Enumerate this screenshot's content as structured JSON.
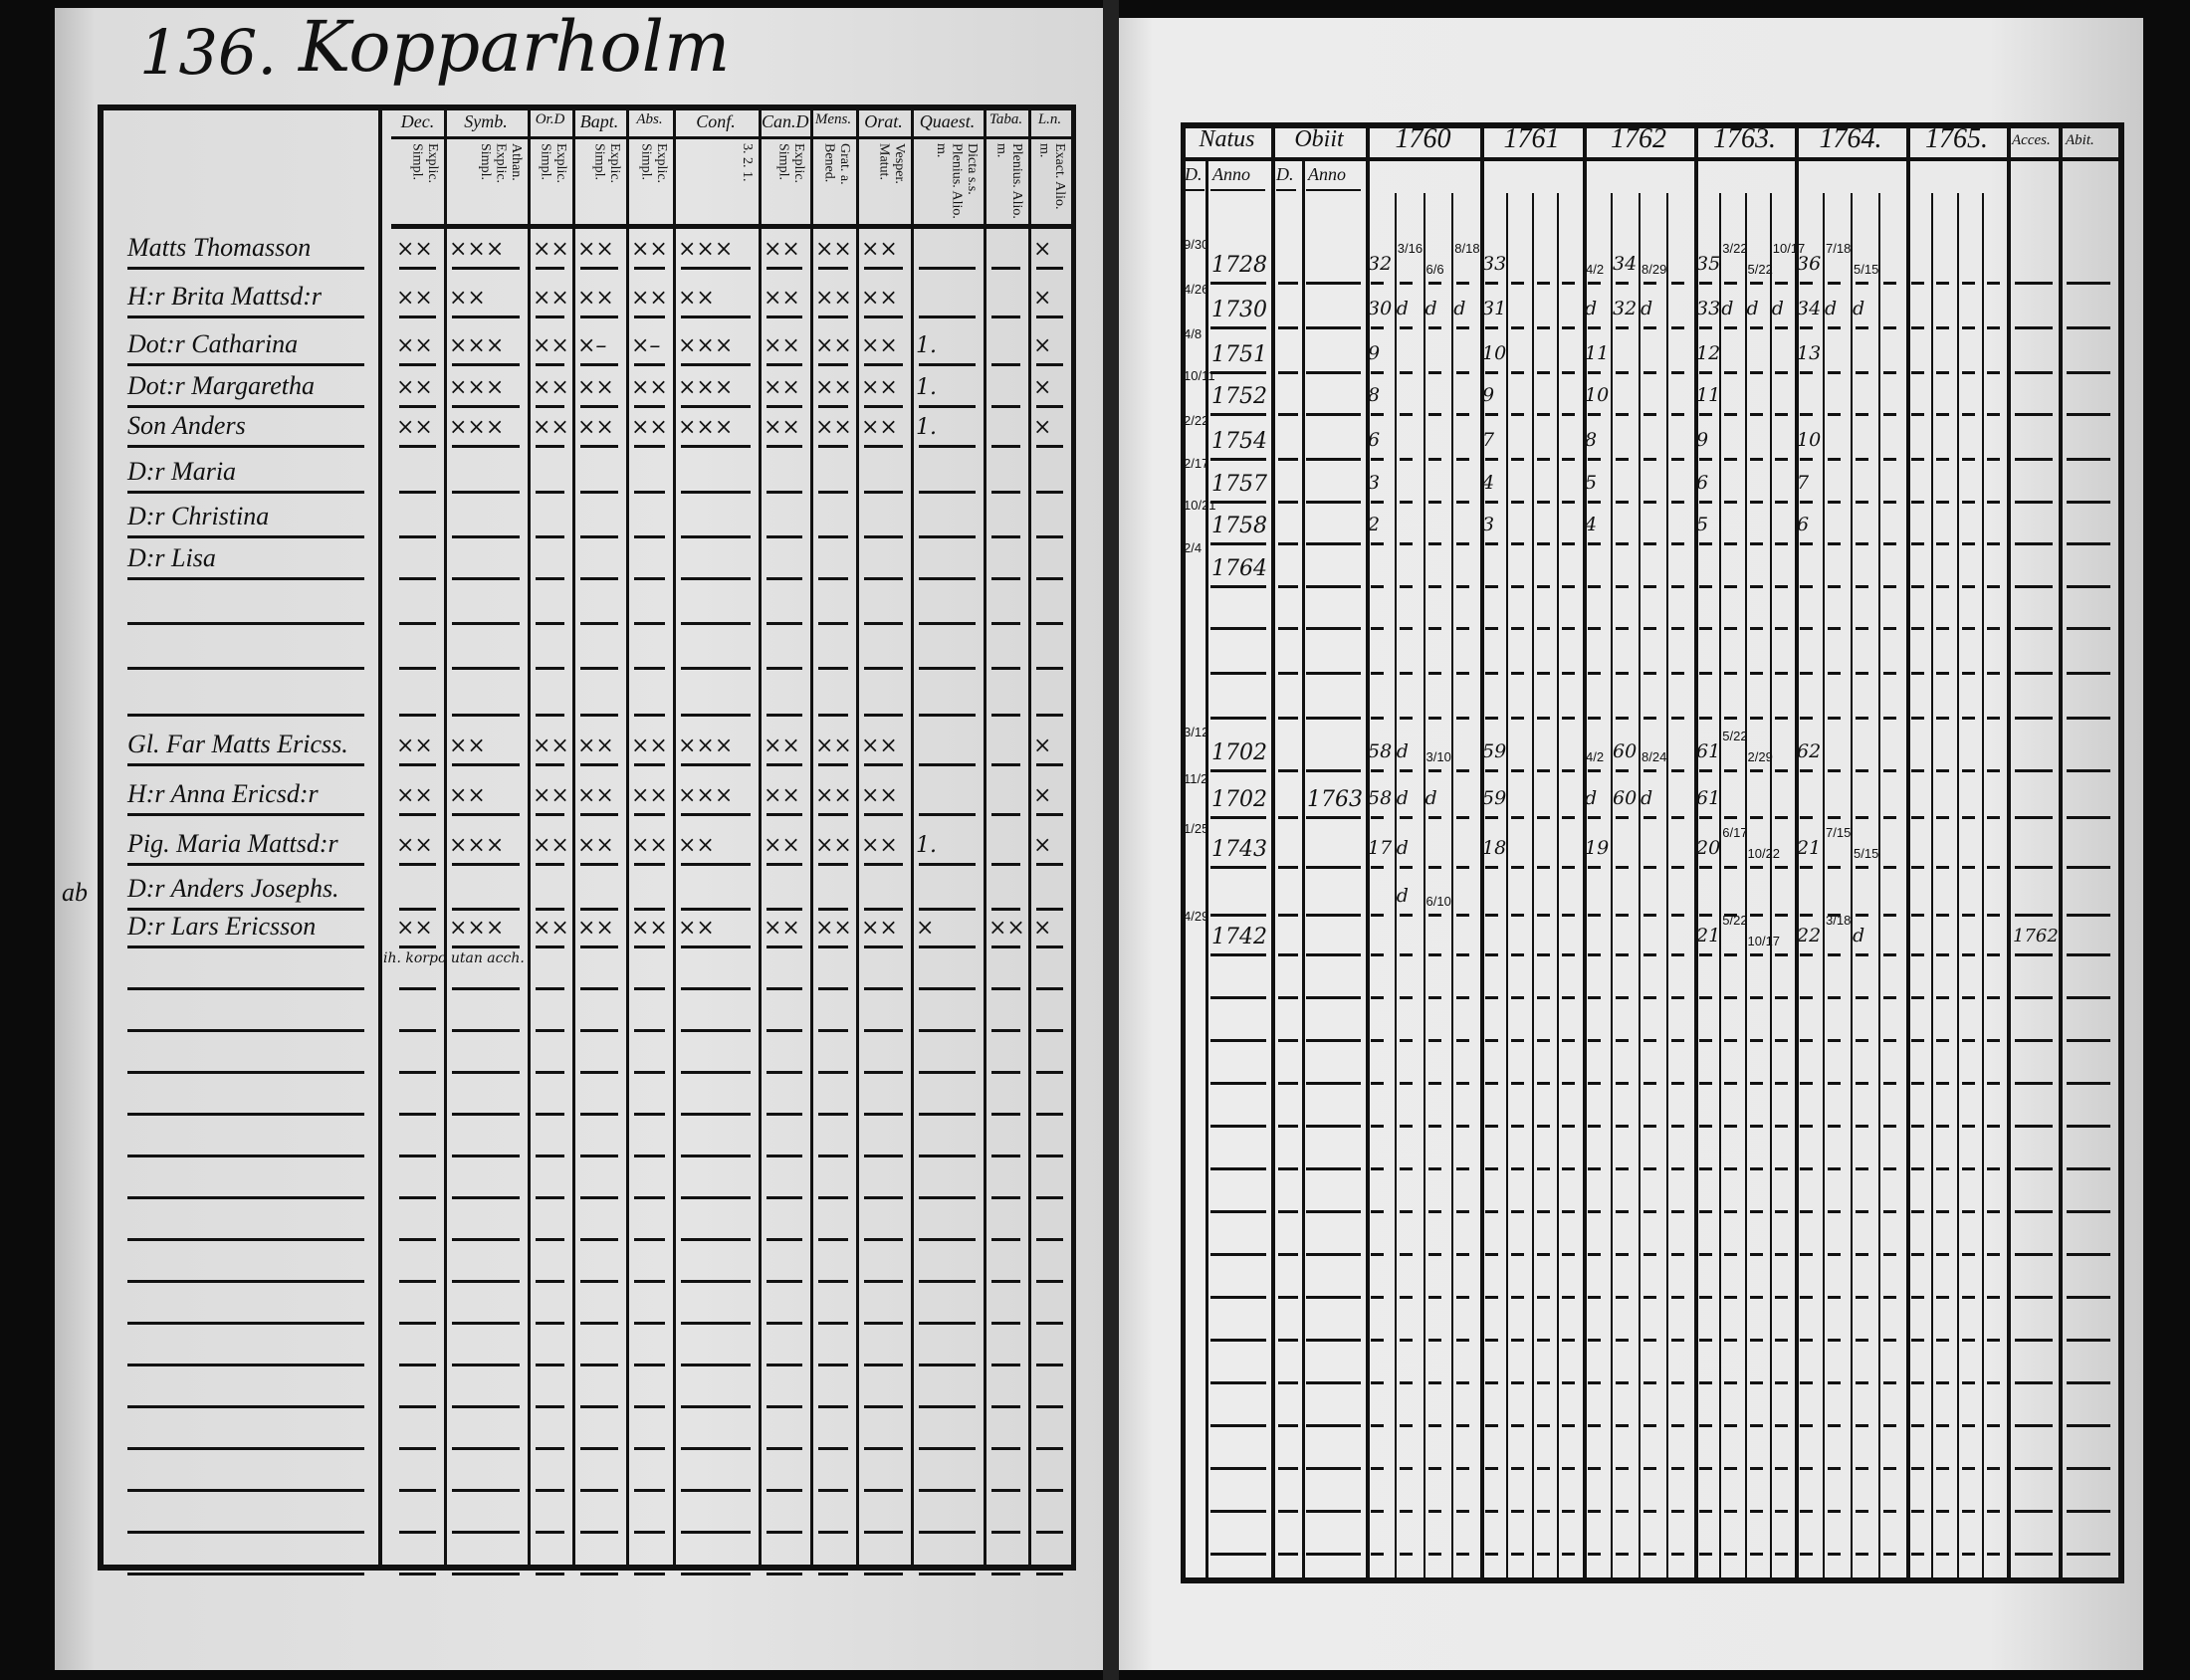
{
  "left_page": {
    "page_number": "136.",
    "place_title": "Kopparholm",
    "columns": [
      {
        "header": "Dec.",
        "sub": "Explic. Simpl."
      },
      {
        "header": "Symb.",
        "sub": "Athan. Explic. Simpl."
      },
      {
        "header": "Or.D",
        "sub": "Explic. Simpl."
      },
      {
        "header": "Bapt.",
        "sub": "Explic. Simpl."
      },
      {
        "header": "Abs.",
        "sub": "Explic. Simpl."
      },
      {
        "header": "Conf.",
        "sub": "3. 2. 1."
      },
      {
        "header": "Can.D",
        "sub": "Explic. Simpl."
      },
      {
        "header": "Mens.",
        "sub": "Grat. a. Bened."
      },
      {
        "header": "Orat.",
        "sub": "Vesper. Matut."
      },
      {
        "header": "Quaest.",
        "sub": "Dicta s.s. Plenius. Alio. m."
      },
      {
        "header": "Taba.",
        "sub": "Plenius. Alio. m."
      },
      {
        "header": "L.n.",
        "sub": "Exact. Alio. m."
      }
    ],
    "margin_note": "ab",
    "persons": [
      {
        "name": "Matts Thomasson",
        "marks": [
          "××",
          "×××",
          "××",
          "××",
          "××",
          "×××",
          "××",
          "××",
          "××",
          "",
          "",
          "×"
        ]
      },
      {
        "name": "H:r Brita Mattsd:r",
        "marks": [
          "××",
          "××",
          "××",
          "××",
          "××",
          "××",
          "××",
          "××",
          "××",
          "",
          "",
          "×"
        ]
      },
      {
        "name": "Dot:r Catharina",
        "marks": [
          "××",
          "×××",
          "××",
          "×–",
          "×–",
          "×××",
          "××",
          "××",
          "××",
          "1.",
          "",
          "×"
        ]
      },
      {
        "name": "Dot:r Margaretha",
        "marks": [
          "××",
          "×××",
          "××",
          "××",
          "××",
          "×××",
          "××",
          "××",
          "××",
          "1.",
          "",
          "×"
        ]
      },
      {
        "name": "Son Anders",
        "marks": [
          "××",
          "×××",
          "××",
          "××",
          "××",
          "×××",
          "××",
          "××",
          "××",
          "1.",
          "",
          "×"
        ]
      },
      {
        "name": "D:r Maria",
        "marks": []
      },
      {
        "name": "D:r Christina",
        "marks": []
      },
      {
        "name": "D:r Lisa",
        "marks": []
      },
      {
        "name": "",
        "marks": []
      },
      {
        "name": "",
        "marks": []
      },
      {
        "name": "",
        "marks": []
      },
      {
        "name": "Gl. Far Matts Ericss.",
        "marks": [
          "××",
          "××",
          "××",
          "××",
          "××",
          "×××",
          "××",
          "××",
          "××",
          "",
          "",
          "×"
        ]
      },
      {
        "name": "H:r Anna Ericsd:r",
        "marks": [
          "××",
          "××",
          "××",
          "××",
          "××",
          "×××",
          "××",
          "××",
          "××",
          "",
          "",
          "×"
        ]
      },
      {
        "name": "Pig. Maria Mattsd:r",
        "marks": [
          "××",
          "×××",
          "××",
          "××",
          "××",
          "××",
          "××",
          "××",
          "××",
          "1.",
          "",
          "×"
        ]
      },
      {
        "name": "D:r Anders Josephs.",
        "marks": []
      },
      {
        "name": "D:r Lars Ericsson",
        "marks": [
          "××",
          "×××",
          "××",
          "××",
          "××",
          "××",
          "××",
          "××",
          "××",
          "×",
          "××",
          "×"
        ],
        "note": "ih. korpo utan acch."
      }
    ]
  },
  "right_page": {
    "headers": {
      "natus": "Natus",
      "obiit": "Obiit",
      "years": [
        "1760",
        "1761",
        "1762",
        "1763.",
        "1764.",
        "1765."
      ],
      "accessit": "Acces.",
      "abiit": "Abit."
    },
    "subheaders": {
      "natus_day": "D.",
      "natus_anno": "Anno",
      "obiit_day": "D.",
      "obiit_anno": "Anno"
    },
    "rows": [
      {
        "day": "9/30",
        "anno": "1728",
        "obiit": "",
        "years": [
          [
            "32",
            "3/16",
            "6/6",
            "8/18"
          ],
          [
            "33",
            "",
            "",
            ""
          ],
          [
            "4/2",
            "34",
            "8/29",
            ""
          ],
          [
            "35",
            "3/22",
            "5/22",
            "10/17"
          ],
          [
            "36",
            "7/18",
            "5/15",
            ""
          ],
          [
            "",
            "",
            "",
            ""
          ]
        ],
        "accessit": ""
      },
      {
        "day": "4/26",
        "anno": "1730",
        "obiit": "",
        "years": [
          [
            "30",
            "d",
            "d",
            "d"
          ],
          [
            "31",
            "",
            "",
            ""
          ],
          [
            "d",
            "32",
            "d",
            ""
          ],
          [
            "33",
            "d",
            "d",
            "d"
          ],
          [
            "34",
            "d",
            "d",
            ""
          ],
          [
            "",
            "",
            "",
            ""
          ]
        ],
        "accessit": ""
      },
      {
        "day": "4/8",
        "anno": "1751",
        "obiit": "",
        "years": [
          [
            "9",
            "",
            "",
            ""
          ],
          [
            "10",
            "",
            "",
            ""
          ],
          [
            "11",
            "",
            "",
            ""
          ],
          [
            "12",
            "",
            "",
            ""
          ],
          [
            "13",
            "",
            "",
            ""
          ],
          [
            "",
            "",
            "",
            ""
          ]
        ],
        "accessit": ""
      },
      {
        "day": "10/11",
        "anno": "1752",
        "obiit": "",
        "years": [
          [
            "8",
            "",
            "",
            ""
          ],
          [
            "9",
            "",
            "",
            ""
          ],
          [
            "10",
            "",
            "",
            ""
          ],
          [
            "11",
            "",
            "",
            ""
          ],
          [
            "",
            "",
            "",
            ""
          ],
          [
            "",
            "",
            "",
            ""
          ]
        ],
        "accessit": ""
      },
      {
        "day": "2/22",
        "anno": "1754",
        "obiit": "",
        "years": [
          [
            "6",
            "",
            "",
            ""
          ],
          [
            "7",
            "",
            "",
            ""
          ],
          [
            "8",
            "",
            "",
            ""
          ],
          [
            "9",
            "",
            "",
            ""
          ],
          [
            "10",
            "",
            "",
            ""
          ],
          [
            "",
            "",
            "",
            ""
          ]
        ],
        "accessit": ""
      },
      {
        "day": "2/17",
        "anno": "1757",
        "obiit": "",
        "years": [
          [
            "3",
            "",
            "",
            ""
          ],
          [
            "4",
            "",
            "",
            ""
          ],
          [
            "5",
            "",
            "",
            ""
          ],
          [
            "6",
            "",
            "",
            ""
          ],
          [
            "7",
            "",
            "",
            ""
          ],
          [
            "",
            "",
            "",
            ""
          ]
        ],
        "accessit": ""
      },
      {
        "day": "10/21",
        "anno": "1758",
        "obiit": "",
        "years": [
          [
            "2",
            "",
            "",
            ""
          ],
          [
            "3",
            "",
            "",
            ""
          ],
          [
            "4",
            "",
            "",
            ""
          ],
          [
            "5",
            "",
            "",
            ""
          ],
          [
            "6",
            "",
            "",
            ""
          ],
          [
            "",
            "",
            "",
            ""
          ]
        ],
        "accessit": ""
      },
      {
        "day": "2/4",
        "anno": "1764",
        "obiit": "",
        "years": [],
        "accessit": ""
      },
      {
        "day": "",
        "anno": "",
        "obiit": "",
        "years": [],
        "accessit": ""
      },
      {
        "day": "",
        "anno": "",
        "obiit": "",
        "years": [],
        "accessit": ""
      },
      {
        "day": "",
        "anno": "",
        "obiit": "",
        "years": [],
        "accessit": ""
      },
      {
        "day": "3/12",
        "anno": "1702",
        "obiit": "",
        "years": [
          [
            "58",
            "d",
            "3/10",
            ""
          ],
          [
            "59",
            "",
            "",
            ""
          ],
          [
            "4/2",
            "60",
            "8/24",
            ""
          ],
          [
            "61",
            "5/22",
            "2/29",
            ""
          ],
          [
            "62",
            "",
            "",
            ""
          ],
          [
            "",
            "",
            "",
            ""
          ]
        ],
        "accessit": ""
      },
      {
        "day": "11/2",
        "anno": "1702",
        "obiit": "1763",
        "years": [
          [
            "58",
            "d",
            "d",
            ""
          ],
          [
            "59",
            "",
            "",
            ""
          ],
          [
            "d",
            "60",
            "d",
            ""
          ],
          [
            "61",
            "",
            "",
            ""
          ],
          [
            "",
            "",
            "",
            ""
          ],
          [
            "",
            "",
            "",
            ""
          ]
        ],
        "accessit": ""
      },
      {
        "day": "1/25",
        "anno": "1743",
        "obiit": "",
        "years": [
          [
            "17",
            "d",
            "",
            ""
          ],
          [
            "18",
            "",
            "",
            ""
          ],
          [
            "19",
            "",
            "",
            ""
          ],
          [
            "20",
            "6/17",
            "10/22",
            ""
          ],
          [
            "21",
            "7/15",
            "5/15",
            ""
          ],
          [
            "",
            "",
            "",
            ""
          ]
        ],
        "accessit": ""
      },
      {
        "day": "",
        "anno": "",
        "obiit": "",
        "years": [
          [
            "",
            "d",
            "6/10",
            ""
          ],
          [
            "",
            "",
            "",
            ""
          ],
          [
            "",
            "",
            "",
            ""
          ],
          [
            "",
            "",
            "",
            ""
          ],
          [
            "",
            "",
            "",
            ""
          ],
          [
            "",
            "",
            "",
            ""
          ]
        ],
        "accessit": ""
      },
      {
        "day": "4/29",
        "anno": "1742",
        "obiit": "",
        "years": [
          [
            "",
            "",
            "",
            ""
          ],
          [
            "",
            "",
            "",
            ""
          ],
          [
            "",
            "",
            "",
            ""
          ],
          [
            "21",
            "5/22",
            "10/17",
            ""
          ],
          [
            "22",
            "3/18",
            "d",
            ""
          ],
          [
            "",
            "",
            "",
            ""
          ]
        ],
        "accessit": "1762"
      }
    ]
  }
}
